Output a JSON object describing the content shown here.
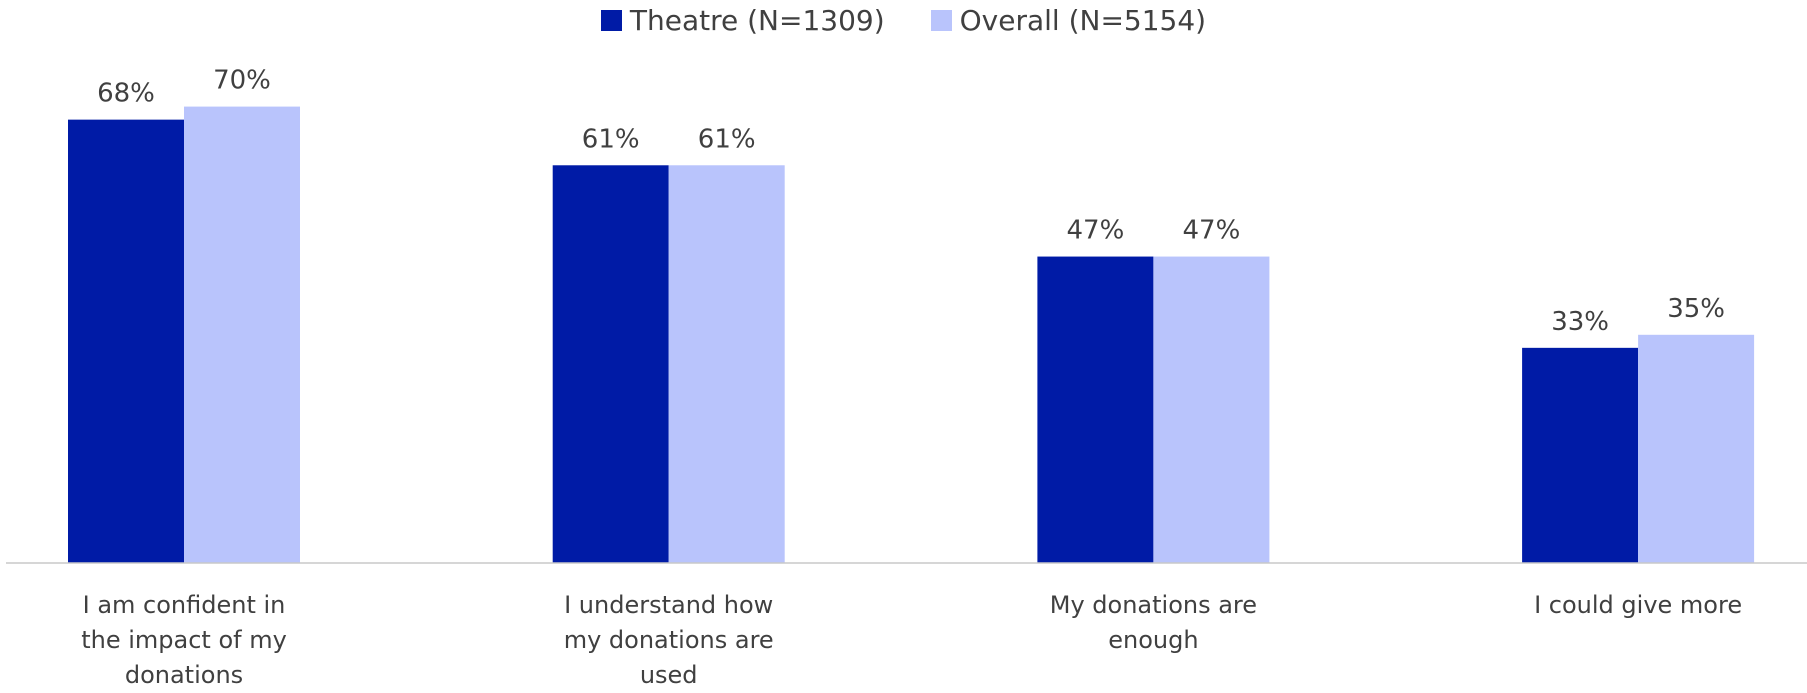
{
  "chart_data": {
    "type": "bar",
    "categories": [
      "I am confident in the impact of my donations",
      "I understand how my donations are used",
      "My donations are enough",
      "I could give more"
    ],
    "series": [
      {
        "name": "Theatre (N=1309)",
        "color": "#001ba6",
        "values": [
          68,
          61,
          47,
          33
        ],
        "value_labels": [
          "68%",
          "61%",
          "47%",
          "33%"
        ]
      },
      {
        "name": "Overall (N=5154)",
        "color": "#b9c4fc",
        "values": [
          70,
          61,
          47,
          35
        ],
        "value_labels": [
          "70%",
          "61%",
          "47%",
          "35%"
        ]
      }
    ],
    "legend": "top"
  }
}
